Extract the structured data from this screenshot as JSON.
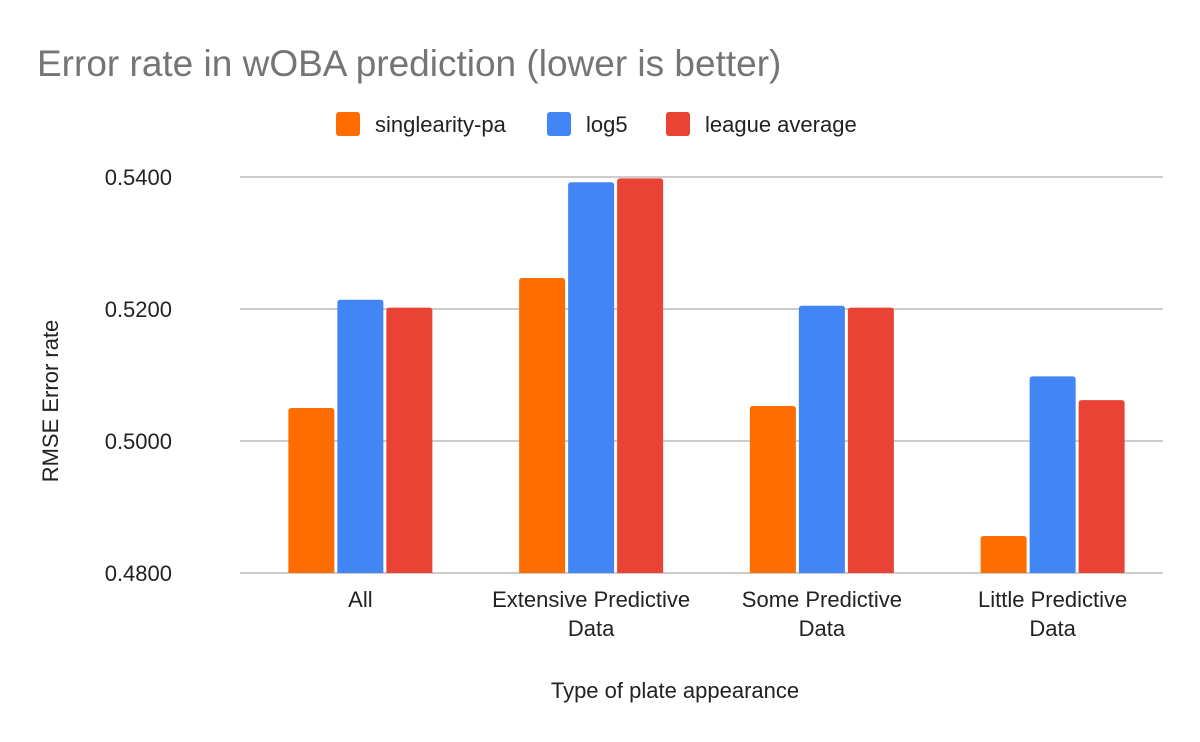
{
  "chart_data": {
    "type": "bar",
    "title": "Error rate in wOBA prediction (lower is better)",
    "xlabel": "Type of plate appearance",
    "ylabel": "RMSE Error rate",
    "ylim": [
      0.48,
      0.54
    ],
    "yticks": [
      "0.4800",
      "0.5000",
      "0.5200",
      "0.5400"
    ],
    "ytick_values": [
      0.48,
      0.5,
      0.52,
      0.54
    ],
    "grid": true,
    "legend_position": "top-center",
    "categories": [
      [
        "All"
      ],
      [
        "Extensive Predictive",
        "Data"
      ],
      [
        "Some Predictive",
        "Data"
      ],
      [
        "Little Predictive",
        "Data"
      ]
    ],
    "series": [
      {
        "name": "singlearity-pa",
        "color": "#ff6d01",
        "values": [
          0.505,
          0.5247,
          0.5053,
          0.4856
        ]
      },
      {
        "name": "log5",
        "color": "#4285f4",
        "values": [
          0.5214,
          0.5392,
          0.5205,
          0.5098
        ]
      },
      {
        "name": "league average",
        "color": "#ea4335",
        "values": [
          0.5202,
          0.5398,
          0.5202,
          0.5062
        ]
      }
    ]
  }
}
